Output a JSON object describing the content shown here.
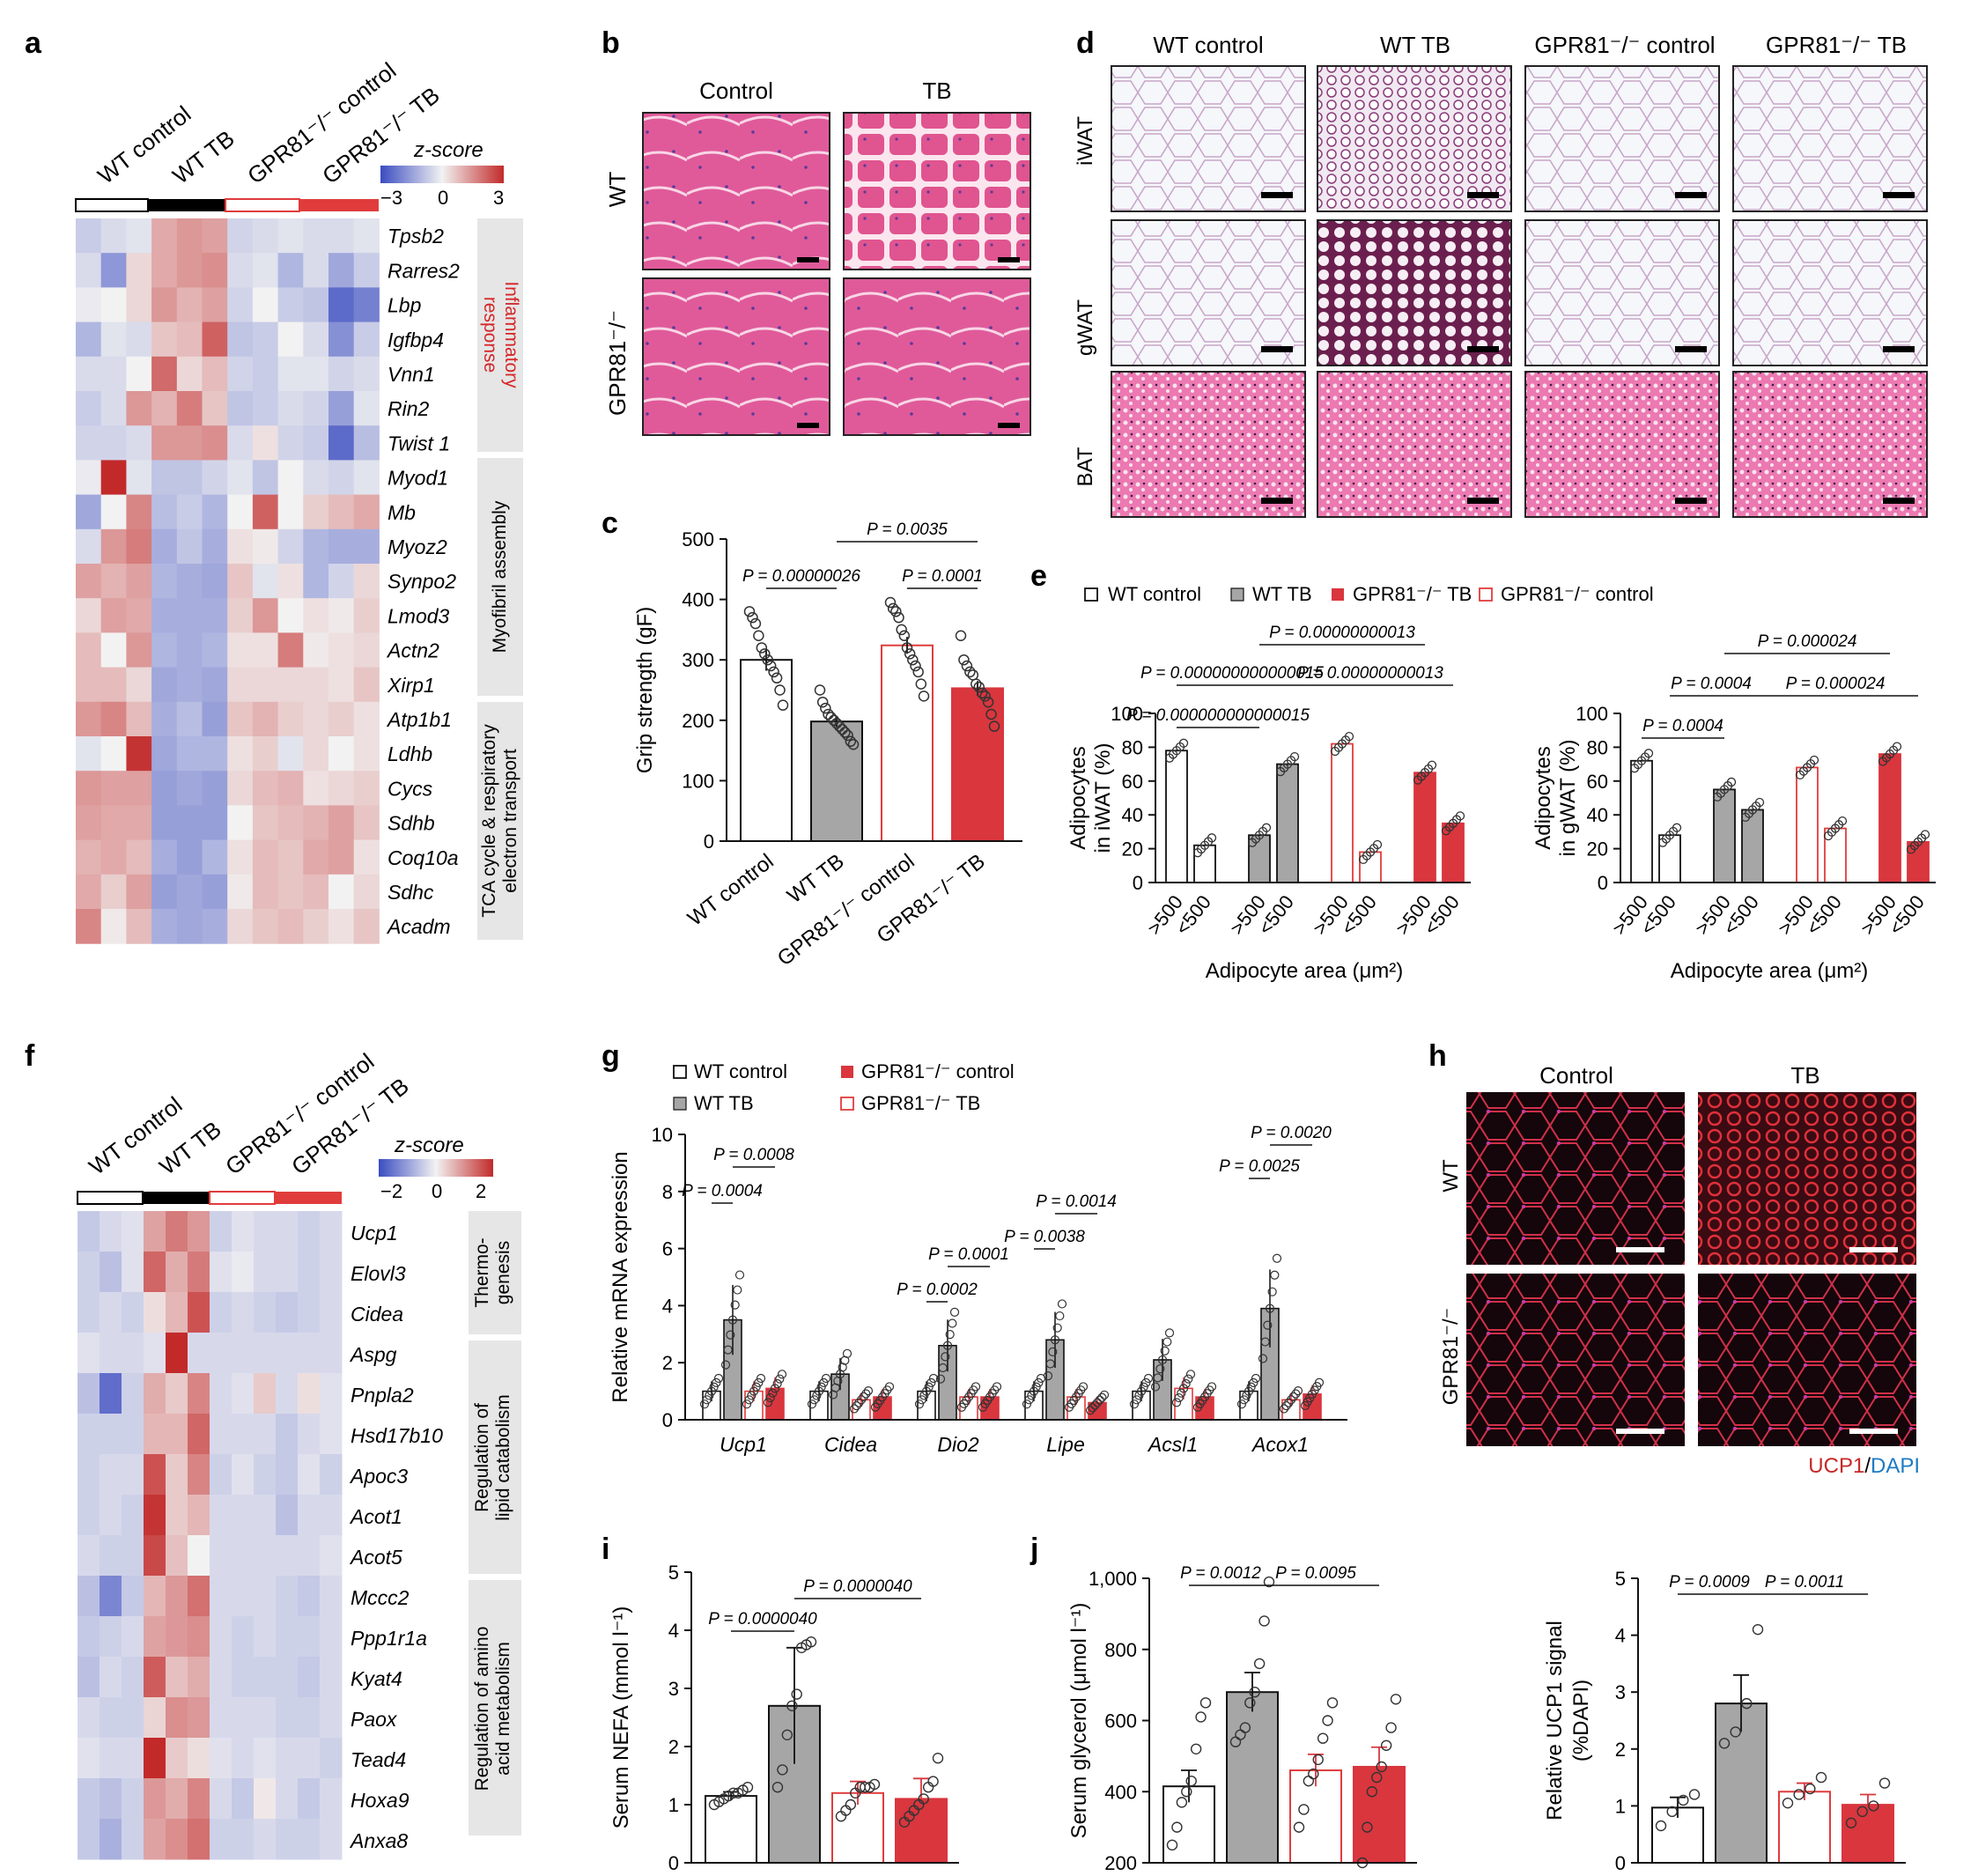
{
  "colors": {
    "wt_control": "#ffffff",
    "wt_tb": "#a6a6a6",
    "ko_control_edge": "#e03c3c",
    "ko_tb": "#d9363e",
    "heat_low": "#3b4cc0",
    "heat_mid": "#f2f2f2",
    "heat_high": "#c22a2a",
    "histo_pink": "#e86aa4",
    "ucp1_red": "#c62828",
    "dapi_blue": "#1e7bc4"
  },
  "panels": {
    "a": {
      "letter": "a",
      "columns": [
        "WT control",
        "WT TB",
        "GPR81⁻/⁻ control",
        "GPR81⁻/⁻ TB"
      ],
      "zscore_label": "z-score",
      "zscore_ticks": [
        "−3",
        "0",
        "3"
      ],
      "genes": [
        "Tpsb2",
        "Rarres2",
        "Lbp",
        "Igfbp4",
        "Vnn1",
        "Rin2",
        "Twist 1",
        "Myod1",
        "Mb",
        "Myoz2",
        "Synpo2",
        "Lmod3",
        "Actn2",
        "Xirp1",
        "Atp1b1",
        "Ldhb",
        "Cycs",
        "Sdhb",
        "Coq10a",
        "Sdhc",
        "Acadm"
      ],
      "groups": [
        {
          "label": "Inflammatory\nresponse",
          "color": "#d62728"
        },
        {
          "label": "Myofibril assembly",
          "color": "#111111"
        },
        {
          "label": "TCA cycle & respiratory\nelectron transport",
          "color": "#111111"
        }
      ],
      "matrix": [
        [
          -0.5,
          -0.3,
          -0.2,
          0.8,
          1.0,
          0.9,
          -0.4,
          -0.3,
          -0.2,
          -0.3,
          -0.3,
          -0.2
        ],
        [
          -0.3,
          -1.2,
          0.3,
          0.8,
          1.0,
          1.1,
          -0.3,
          -0.2,
          -0.8,
          -0.3,
          -1.0,
          -0.5
        ],
        [
          -0.1,
          0.0,
          0.3,
          1.0,
          0.7,
          0.9,
          -0.4,
          0.0,
          -0.5,
          -0.6,
          -1.8,
          -1.5
        ],
        [
          -0.8,
          -0.2,
          -0.3,
          0.5,
          0.6,
          1.6,
          -0.6,
          -0.5,
          0.0,
          -0.3,
          -1.3,
          -0.5
        ],
        [
          -0.3,
          -0.3,
          0.0,
          1.5,
          0.3,
          0.6,
          -0.4,
          -0.5,
          -0.2,
          -0.2,
          -0.4,
          -0.3
        ],
        [
          -0.5,
          -0.3,
          1.0,
          0.7,
          1.3,
          0.5,
          -0.6,
          -0.5,
          -0.3,
          -0.4,
          -1.1,
          -0.2
        ],
        [
          -0.4,
          -0.4,
          -0.3,
          1.0,
          1.0,
          1.1,
          -0.3,
          0.2,
          -0.4,
          -0.5,
          -1.8,
          -0.7
        ],
        [
          -0.1,
          2.6,
          -0.2,
          -0.6,
          -0.6,
          -0.4,
          -0.2,
          -0.6,
          0.0,
          -0.3,
          -0.4,
          -0.2
        ],
        [
          -1.0,
          0.0,
          1.2,
          -0.7,
          -0.5,
          -0.8,
          0.0,
          1.6,
          0.0,
          0.4,
          0.6,
          0.8
        ],
        [
          -0.3,
          1.0,
          1.3,
          -0.9,
          -0.6,
          -0.9,
          0.2,
          0.1,
          -0.4,
          -0.8,
          -0.9,
          -0.9
        ],
        [
          0.9,
          0.7,
          0.9,
          -0.8,
          -0.9,
          -1.0,
          0.5,
          -0.2,
          0.2,
          -0.8,
          -0.4,
          0.3
        ],
        [
          0.3,
          0.9,
          0.8,
          -0.9,
          -0.9,
          -0.9,
          0.4,
          1.0,
          0.0,
          0.2,
          0.1,
          0.4
        ],
        [
          0.6,
          0.0,
          1.0,
          -0.8,
          -0.9,
          -0.8,
          0.2,
          0.2,
          1.3,
          0.1,
          0.2,
          0.3
        ],
        [
          0.6,
          0.6,
          0.3,
          -1.0,
          -0.9,
          -1.0,
          0.3,
          0.3,
          0.3,
          0.3,
          0.2,
          0.5
        ],
        [
          1.0,
          1.2,
          0.6,
          -0.9,
          -0.7,
          -1.1,
          0.5,
          0.7,
          0.4,
          0.3,
          0.4,
          0.2
        ],
        [
          -0.2,
          0.0,
          2.1,
          -1.0,
          -0.8,
          -0.8,
          0.2,
          0.4,
          -0.2,
          0.3,
          0.0,
          0.2
        ],
        [
          1.0,
          0.9,
          0.9,
          -1.1,
          -1.0,
          -1.1,
          0.3,
          0.6,
          0.7,
          0.2,
          0.3,
          0.4
        ],
        [
          0.9,
          0.8,
          0.8,
          -1.1,
          -1.1,
          -1.1,
          0.0,
          0.5,
          0.6,
          0.7,
          0.9,
          0.5
        ],
        [
          0.7,
          0.8,
          0.6,
          -0.9,
          -1.1,
          -0.8,
          0.2,
          0.6,
          0.5,
          0.8,
          0.9,
          0.2
        ],
        [
          0.8,
          0.4,
          0.9,
          -1.1,
          -1.0,
          -1.1,
          0.1,
          0.6,
          0.5,
          0.6,
          0.0,
          0.3
        ],
        [
          1.2,
          0.1,
          0.6,
          -0.9,
          -1.0,
          -0.9,
          0.3,
          0.5,
          0.6,
          0.4,
          0.2,
          0.5
        ]
      ]
    },
    "b": {
      "letter": "b",
      "col_labels": [
        "Control",
        "TB"
      ],
      "row_labels": [
        "WT",
        "GPR81⁻/⁻"
      ]
    },
    "c": {
      "letter": "c",
      "ylabel": "Grip strength (gF)",
      "yticks": [
        "0",
        "100",
        "200",
        "300",
        "400",
        "500"
      ],
      "categories": [
        "WT control",
        "WT TB",
        "GPR81⁻/⁻ control",
        "GPR81⁻/⁻ TB"
      ],
      "pvalues": [
        "P = 0.00000026",
        "P = 0.0035",
        "P = 0.0001"
      ]
    },
    "d": {
      "letter": "d",
      "col_labels": [
        "WT control",
        "WT TB",
        "GPR81⁻/⁻ control",
        "GPR81⁻/⁻ TB"
      ],
      "row_labels": [
        "iWAT",
        "gWAT",
        "BAT"
      ]
    },
    "e": {
      "letter": "e",
      "legend": [
        "WT control",
        "WT TB",
        "GPR81⁻/⁻ TB",
        "GPR81⁻/⁻ control"
      ],
      "left_ylabel_1": "Adipocytes",
      "left_ylabel_2": "in iWAT (%)",
      "right_ylabel_1": "Adipocytes",
      "right_ylabel_2": "in gWAT (%)",
      "yticks": [
        "0",
        "20",
        "40",
        "60",
        "80",
        "100"
      ],
      "xtick_labels": [
        ">500",
        "<500"
      ],
      "xlabel": "Adipocyte area (μm²)",
      "left_pvalues": [
        "P = 0.00000000013",
        "P = 0.000000000000015",
        "P = 0.00000000013",
        "P = 0.000000000000015"
      ],
      "right_pvalues": [
        "P = 0.000024",
        "P = 0.0004",
        "P = 0.000024",
        "P = 0.0004"
      ]
    },
    "f": {
      "letter": "f",
      "columns": [
        "WT control",
        "WT TB",
        "GPR81⁻/⁻ control",
        "GPR81⁻/⁻ TB"
      ],
      "zscore_label": "z-score",
      "zscore_ticks": [
        "−2",
        "0",
        "2"
      ],
      "genes": [
        "Ucp1",
        "Elovl3",
        "Cidea",
        "Aspg",
        "Pnpla2",
        "Hsd17b10",
        "Apoc3",
        "Acot1",
        "Acot5",
        "Mccc2",
        "Ppp1r1a",
        "Kyat4",
        "Paox",
        "Tead4",
        "Hoxa9",
        "Anxa8"
      ],
      "groups": [
        {
          "label": "Thermo-\ngenesis"
        },
        {
          "label": "Regulation of\nlipid catabolism"
        },
        {
          "label": "Regulation of amino\nacid metabolism"
        }
      ],
      "matrix": [
        [
          -0.5,
          -0.3,
          -0.2,
          0.8,
          1.2,
          0.9,
          -0.4,
          -0.2,
          -0.3,
          -0.3,
          -0.4,
          -0.3
        ],
        [
          -0.4,
          -0.6,
          -0.2,
          1.4,
          0.7,
          1.2,
          -0.2,
          -0.1,
          -0.3,
          -0.3,
          -0.4,
          -0.3
        ],
        [
          -0.4,
          -0.3,
          -0.4,
          0.2,
          0.6,
          1.6,
          -0.4,
          -0.3,
          -0.4,
          -0.5,
          -0.4,
          -0.3
        ],
        [
          -0.2,
          -0.3,
          -0.3,
          -0.2,
          2.0,
          -0.3,
          -0.3,
          -0.3,
          -0.3,
          -0.3,
          -0.3,
          -0.3
        ],
        [
          -0.6,
          -1.6,
          -0.4,
          0.7,
          0.4,
          1.1,
          -0.3,
          -0.2,
          0.4,
          -0.3,
          0.2,
          -0.2
        ],
        [
          -0.4,
          -0.4,
          -0.4,
          0.6,
          0.6,
          1.4,
          -0.3,
          -0.3,
          -0.3,
          -0.5,
          -0.3,
          -0.2
        ],
        [
          -0.4,
          -0.3,
          -0.3,
          1.6,
          0.4,
          1.1,
          -0.4,
          -0.2,
          -0.4,
          -0.5,
          -0.2,
          -0.4
        ],
        [
          -0.4,
          -0.3,
          -0.4,
          1.9,
          0.4,
          0.6,
          -0.3,
          -0.3,
          -0.3,
          -0.6,
          -0.3,
          -0.3
        ],
        [
          -0.3,
          -0.4,
          -0.4,
          1.7,
          0.5,
          0.0,
          -0.3,
          -0.3,
          -0.3,
          -0.3,
          -0.3,
          -0.2
        ],
        [
          -0.6,
          -1.3,
          -0.5,
          0.6,
          0.9,
          1.3,
          -0.3,
          -0.3,
          -0.3,
          -0.4,
          -0.5,
          -0.3
        ],
        [
          -0.5,
          -0.4,
          -0.3,
          0.8,
          0.9,
          1.0,
          -0.3,
          -0.4,
          -0.3,
          -0.4,
          -0.4,
          -0.3
        ],
        [
          -0.6,
          -0.3,
          -0.4,
          1.5,
          0.5,
          0.7,
          -0.3,
          -0.4,
          -0.4,
          -0.4,
          -0.5,
          -0.3
        ],
        [
          -0.3,
          -0.4,
          -0.4,
          0.3,
          1.0,
          0.9,
          -0.3,
          -0.3,
          -0.3,
          -0.4,
          -0.4,
          -0.3
        ],
        [
          -0.2,
          -0.3,
          -0.3,
          2.0,
          0.4,
          0.2,
          -0.2,
          -0.3,
          -0.2,
          -0.3,
          -0.3,
          -0.4
        ],
        [
          -0.5,
          -0.6,
          -0.4,
          0.9,
          0.7,
          1.1,
          -0.3,
          -0.5,
          0.1,
          -0.3,
          -0.5,
          -0.3
        ],
        [
          -0.5,
          -0.8,
          -0.4,
          0.8,
          1.0,
          1.3,
          -0.4,
          -0.4,
          -0.3,
          -0.4,
          -0.4,
          -0.3
        ]
      ]
    },
    "g": {
      "letter": "g",
      "legend": [
        "WT control",
        "GPR81⁻/⁻ control",
        "WT TB",
        "GPR81⁻/⁻ TB"
      ],
      "ylabel": "Relative mRNA expression",
      "yticks": [
        "0",
        "2",
        "4",
        "6",
        "8",
        "10"
      ],
      "genes": [
        "Ucp1",
        "Cidea",
        "Dio2",
        "Lipe",
        "Acsl1",
        "Acox1"
      ],
      "pvalues": [
        "P = 0.0008",
        "P = 0.0004",
        "P = 0.0001",
        "P = 0.0002",
        "P = 0.0014",
        "P = 0.0038",
        "P = 0.0020",
        "P = 0.0025"
      ]
    },
    "h": {
      "letter": "h",
      "col_labels": [
        "Control",
        "TB"
      ],
      "row_labels": [
        "WT",
        "GPR81⁻/⁻"
      ],
      "stain_ucp1": "UCP1",
      "stain_sep": "/",
      "stain_dapi": "DAPI"
    },
    "i": {
      "letter": "i",
      "ylabel": "Serum NEFA (mmol l⁻¹)",
      "yticks": [
        "0",
        "1",
        "2",
        "3",
        "4",
        "5"
      ],
      "pvalues": [
        "P = 0.0000040",
        "P = 0.0000040"
      ]
    },
    "j": {
      "letter": "j",
      "ylabel": "Serum glycerol (μmol l⁻¹)",
      "yticks": [
        "200",
        "400",
        "600",
        "800",
        "1,000"
      ],
      "pvalues": [
        "P = 0.0012",
        "P = 0.0095"
      ],
      "ucp1_ylabel_1": "Relative UCP1 signal",
      "ucp1_ylabel_2": "(%DAPI)",
      "ucp1_yticks": [
        "0",
        "1",
        "2",
        "3",
        "4",
        "5"
      ],
      "ucp1_pvalues": [
        "P = 0.0009",
        "P = 0.0011"
      ]
    }
  },
  "chart_data": [
    {
      "type": "bar",
      "panel": "c",
      "categories": [
        "WT control",
        "WT TB",
        "GPR81⁻/⁻ control",
        "GPR81⁻/⁻ TB"
      ],
      "values": [
        300,
        198,
        324,
        253
      ],
      "sem": [
        18,
        9,
        14,
        12
      ],
      "points": [
        [
          380,
          370,
          360,
          340,
          320,
          310,
          300,
          290,
          280,
          270,
          250,
          225
        ],
        [
          250,
          230,
          220,
          210,
          205,
          200,
          195,
          190,
          185,
          180,
          175,
          165,
          160
        ],
        [
          395,
          385,
          380,
          370,
          350,
          340,
          320,
          310,
          300,
          290,
          280,
          260,
          240
        ],
        [
          340,
          300,
          290,
          280,
          275,
          260,
          255,
          245,
          240,
          230,
          210,
          190
        ]
      ],
      "ylabel": "Grip strength (gF)",
      "ylim": [
        0,
        500
      ]
    },
    {
      "type": "bar",
      "panel": "e-left",
      "categories": [
        ">500",
        "<500",
        ">500",
        "<500",
        ">500",
        "<500",
        ">500",
        "<500"
      ],
      "groups": [
        "WT control",
        "WT control",
        "WT TB",
        "WT TB",
        "GPR81⁻/⁻ control",
        "GPR81⁻/⁻ control",
        "GPR81⁻/⁻ TB",
        "GPR81⁻/⁻ TB"
      ],
      "values": [
        78,
        22,
        28,
        70,
        82,
        18,
        65,
        35
      ],
      "ylabel": "Adipocytes in iWAT (%)",
      "xlabel": "Adipocyte area (μm²)",
      "ylim": [
        0,
        100
      ]
    },
    {
      "type": "bar",
      "panel": "e-right",
      "categories": [
        ">500",
        "<500",
        ">500",
        "<500",
        ">500",
        "<500",
        ">500",
        "<500"
      ],
      "groups": [
        "WT control",
        "WT control",
        "WT TB",
        "WT TB",
        "GPR81⁻/⁻ control",
        "GPR81⁻/⁻ control",
        "GPR81⁻/⁻ TB",
        "GPR81⁻/⁻ TB"
      ],
      "values": [
        72,
        28,
        55,
        43,
        68,
        32,
        76,
        24
      ],
      "ylabel": "Adipocytes in gWAT (%)",
      "xlabel": "Adipocyte area (μm²)",
      "ylim": [
        0,
        100
      ]
    },
    {
      "type": "bar",
      "panel": "g",
      "categories": [
        "Ucp1",
        "Cidea",
        "Dio2",
        "Lipe",
        "Acsl1",
        "Acox1"
      ],
      "series": [
        {
          "name": "WT control",
          "values": [
            1.0,
            1.0,
            1.0,
            1.0,
            1.0,
            1.0
          ]
        },
        {
          "name": "WT TB",
          "values": [
            3.5,
            1.6,
            2.6,
            2.8,
            2.1,
            3.9
          ]
        },
        {
          "name": "GPR81⁻/⁻ control",
          "values": [
            1.0,
            0.7,
            0.8,
            0.8,
            1.1,
            0.7
          ]
        },
        {
          "name": "GPR81⁻/⁻ TB",
          "values": [
            1.1,
            0.8,
            0.8,
            0.6,
            0.8,
            0.9
          ]
        }
      ],
      "ylabel": "Relative mRNA expression",
      "ylim": [
        0,
        10
      ]
    },
    {
      "type": "bar",
      "panel": "i",
      "categories": [
        "WT control",
        "WT TB",
        "GPR81⁻/⁻ control",
        "GPR81⁻/⁻ TB"
      ],
      "values": [
        1.15,
        2.7,
        1.2,
        1.1
      ],
      "sd": [
        0.07,
        1.0,
        0.2,
        0.35
      ],
      "points": [
        [
          1.0,
          1.05,
          1.1,
          1.15,
          1.2,
          1.2,
          1.25,
          1.3
        ],
        [
          1.3,
          1.6,
          2.2,
          2.7,
          2.9,
          3.7,
          3.75,
          3.8
        ],
        [
          0.8,
          0.9,
          1.0,
          1.2,
          1.3,
          1.3,
          1.3,
          1.35
        ],
        [
          0.7,
          0.8,
          0.9,
          1.0,
          1.1,
          1.3,
          1.4,
          1.8
        ]
      ],
      "ylabel": "Serum NEFA (mmol l⁻¹)",
      "ylim": [
        0,
        5
      ]
    },
    {
      "type": "bar",
      "panel": "j",
      "categories": [
        "WT control",
        "WT TB",
        "GPR81⁻/⁻ control",
        "GPR81⁻/⁻ TB"
      ],
      "values": [
        415,
        680,
        460,
        470
      ],
      "sem": [
        45,
        55,
        45,
        55
      ],
      "points": [
        [
          250,
          300,
          370,
          400,
          430,
          520,
          610,
          650
        ],
        [
          540,
          560,
          580,
          650,
          680,
          760,
          880,
          990
        ],
        [
          300,
          350,
          430,
          450,
          490,
          550,
          600,
          650
        ],
        [
          200,
          300,
          400,
          440,
          470,
          530,
          580,
          660
        ]
      ],
      "ylabel": "Serum glycerol (μmol l⁻¹)",
      "ylim": [
        200,
        1000
      ]
    },
    {
      "type": "bar",
      "panel": "h-quant",
      "categories": [
        "WT control",
        "WT TB",
        "GPR81⁻/⁻ control",
        "GPR81⁻/⁻ TB"
      ],
      "values": [
        0.97,
        2.8,
        1.25,
        1.02
      ],
      "sem": [
        0.18,
        0.5,
        0.15,
        0.18
      ],
      "points": [
        [
          0.65,
          0.9,
          1.1,
          1.2
        ],
        [
          2.1,
          2.3,
          2.8,
          4.1
        ],
        [
          1.05,
          1.2,
          1.3,
          1.5
        ],
        [
          0.7,
          0.9,
          1.0,
          1.4
        ]
      ],
      "ylabel": "Relative UCP1 signal (%DAPI)",
      "ylim": [
        0,
        5
      ]
    }
  ]
}
